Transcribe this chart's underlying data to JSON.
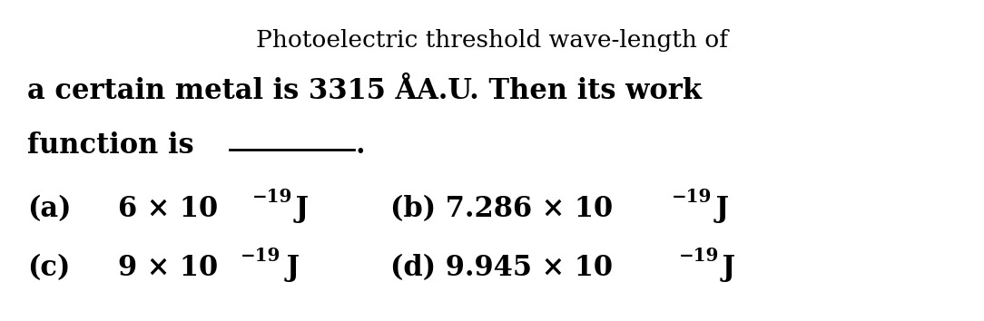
{
  "bg_color": "#ffffff",
  "title_line": "Photoelectric threshold wave-length of",
  "body_line1": "a certain metal is 3315 ÅA.U. Then its work",
  "body_line2": "function is ______.",
  "option_a_label": "(a)",
  "option_a_value": "6 × 10",
  "option_a_exp": "−19",
  "option_a_unit": " J",
  "option_b_label": "(b) 7.286 × 10",
  "option_b_exp": "−19",
  "option_b_unit": " J",
  "option_c_label": "(c)",
  "option_c_value": "9 × 10",
  "option_c_exp": "−19",
  "option_c_unit": " J",
  "option_d_label": "(d) 9.945 × 10",
  "option_d_exp": "−19",
  "option_d_unit": " J"
}
